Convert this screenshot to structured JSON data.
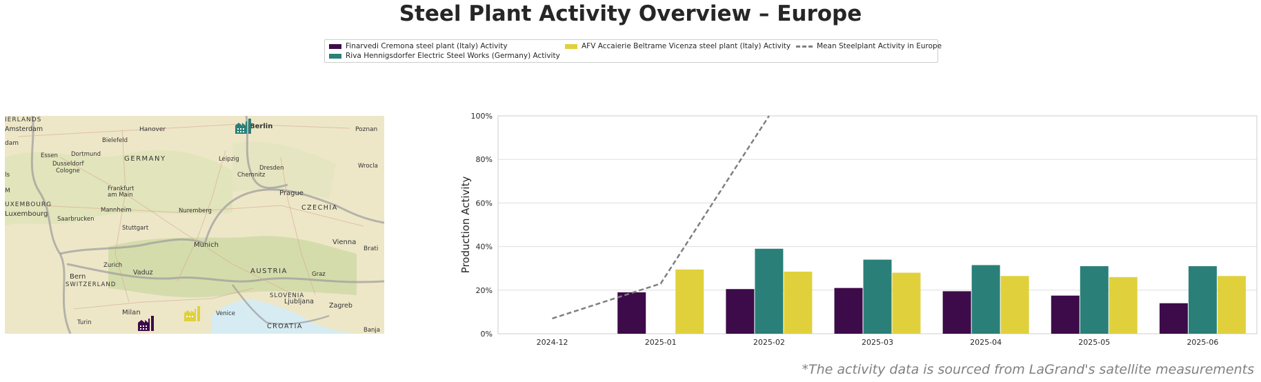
{
  "title": "Steel Plant Activity Overview – Europe",
  "legend": [
    {
      "label": "Finarvedi Cremona steel plant (Italy) Activity",
      "color": "#3d0b4a"
    },
    {
      "label": "Riva Hennigsdorfer Electric Steel Works (Germany) Activity",
      "color": "#2a8078"
    },
    {
      "label": "AFV Accaierie Beltrame Vicenza steel plant (Italy) Activity",
      "color": "#e0d13c"
    },
    {
      "label": "Mean Steelplant Activity in Europe",
      "color": "#7f7f7f"
    }
  ],
  "map": {
    "labels": [
      "IERLANDS",
      "Amsterdam",
      "dam",
      "Hanover",
      "Berlin",
      "Poznan",
      "Bielefeld",
      "GERMANY",
      "Essen",
      "Dortmund",
      "Dusseldorf",
      "Cologne",
      "Leipzig",
      "Dresden",
      "Wrocla",
      "Chemnitz",
      "Frankfurt",
      "am Main",
      "Prague",
      "Mannheim",
      "Nuremberg",
      "CZECHIA",
      "UXEMBOURG",
      "Luxembourg",
      "Saarbrucken",
      "Stuttgart",
      "Munich",
      "Vienna",
      "Brati",
      "Zurich",
      "Vaduz",
      "AUSTRIA",
      "Bern",
      "SWITZERLAND",
      "Graz",
      "SLOVENIA",
      "Ljubljana",
      "Zagreb",
      "Milan",
      "Venice",
      "Turin",
      "CROATIA",
      "Banja",
      "ls",
      "M"
    ]
  },
  "chart_data": {
    "type": "bar",
    "categories": [
      "2024-12",
      "2025-01",
      "2025-02",
      "2025-03",
      "2025-04",
      "2025-05",
      "2025-06"
    ],
    "series": [
      {
        "name": "Finarvedi Cremona steel plant (Italy) Activity",
        "values": [
          null,
          19,
          20.5,
          21,
          19.5,
          17.5,
          14
        ]
      },
      {
        "name": "Riva Hennigsdorfer Electric Steel Works (Germany) Activity",
        "values": [
          null,
          null,
          39,
          34,
          31.5,
          31,
          31
        ]
      },
      {
        "name": "AFV Accaierie Beltrame Vicenza steel plant (Italy) Activity",
        "values": [
          null,
          29.5,
          28.5,
          28,
          26.5,
          26,
          26.5
        ]
      }
    ],
    "line": {
      "name": "Mean Steelplant Activity in Europe",
      "values": [
        7,
        23,
        100,
        null,
        null,
        null,
        null
      ]
    },
    "ylabel": "Production Activity",
    "xlabel": "",
    "ylim": [
      0,
      100
    ],
    "yticks": [
      "0%",
      "20%",
      "40%",
      "60%",
      "80%",
      "100%"
    ],
    "grid": true
  },
  "footnote": "*The activity data is sourced from LaGrand's satellite measurements"
}
